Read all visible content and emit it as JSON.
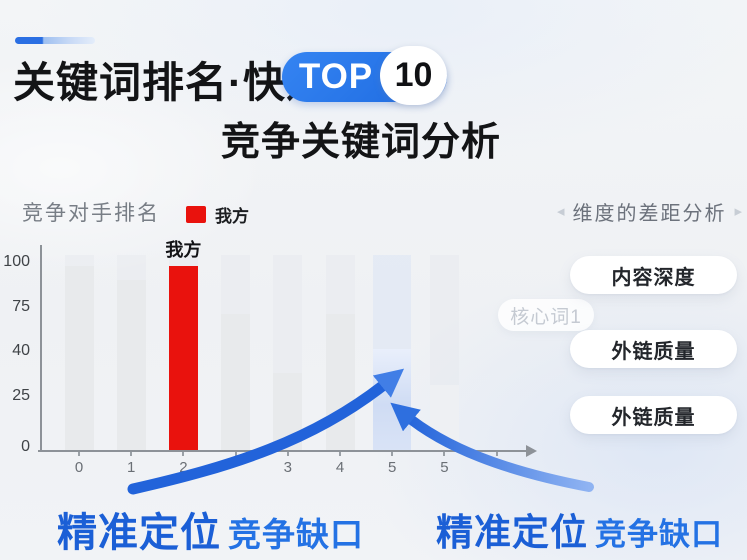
{
  "header": {
    "title": "关键词排名·快速",
    "badge_text": "TOP",
    "badge_number": "10",
    "subtitle": "竞争关键词分析",
    "accent_color": "#2b6fe3"
  },
  "chart": {
    "section_label": "竞争对手排名",
    "legend_label": "我方",
    "legend_color": "#e9120d"
  },
  "chart_data": {
    "type": "bar",
    "title": "竞争对手排名",
    "xlabel": "",
    "ylabel": "",
    "ylim": [
      0,
      100
    ],
    "grid": false,
    "legend_position": "top",
    "legend": [
      {
        "name": "我方",
        "color": "#e9120d"
      }
    ],
    "y_ticks": [
      {
        "label": "0",
        "value": 0
      },
      {
        "label": "25",
        "value": 25
      },
      {
        "label": "40",
        "value": 40
      },
      {
        "label": "75",
        "value": 75
      },
      {
        "label": "100",
        "value": 100
      }
    ],
    "x_tick_labels": [
      "0",
      "1",
      "2",
      "",
      "3",
      "4",
      "5",
      "5",
      ""
    ],
    "bars": [
      {
        "x": "0",
        "value": 100,
        "role": "competitor"
      },
      {
        "x": "1",
        "value": 92,
        "role": "competitor"
      },
      {
        "x": "2",
        "value": 100,
        "role": "self",
        "label": "我方"
      },
      {
        "x": "",
        "value": 73,
        "role": "competitor"
      },
      {
        "x": "3",
        "value": 34,
        "role": "competitor"
      },
      {
        "x": "4",
        "value": 73,
        "role": "competitor"
      },
      {
        "x": "5",
        "value": 45,
        "role": "gap-highlight"
      },
      {
        "x": "5",
        "value": 30,
        "role": "competitor-faint"
      }
    ]
  },
  "analysis": {
    "nav_prev": "◂",
    "nav_next": "▸",
    "header": "维度的差距分析",
    "tag_faded": "核心词1",
    "pills": [
      "内容深度",
      "外链质量",
      "外链质量"
    ]
  },
  "callouts": {
    "left": {
      "strong": "精准定位",
      "rest": "竞争缺口"
    },
    "right": {
      "strong": "精准定位",
      "rest": "竞争缺口"
    }
  },
  "colors": {
    "arrow_blue": "#2263da",
    "red": "#e9120d",
    "bar_gray": "#e8eaec",
    "highlight_bar": "#cfdcf4"
  }
}
